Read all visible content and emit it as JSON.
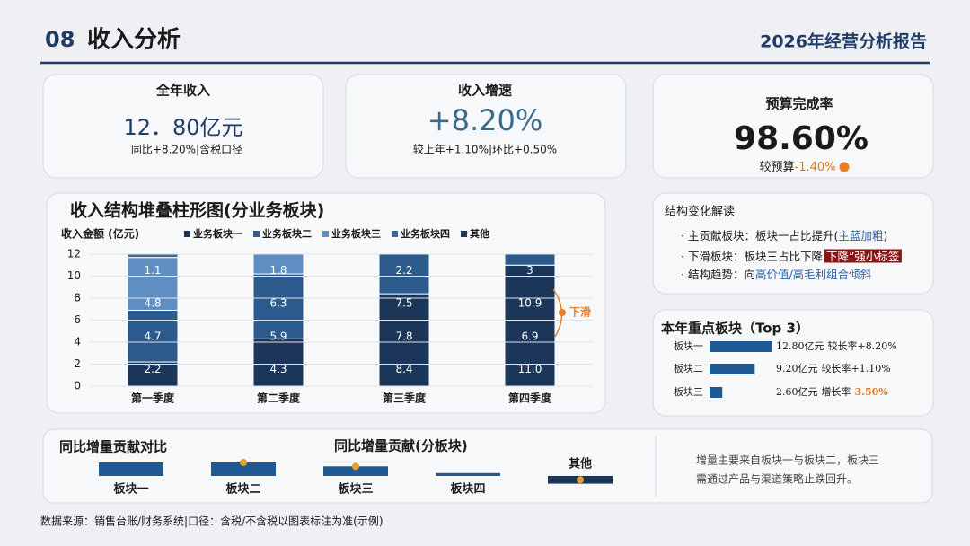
{
  "header": {
    "number": "08",
    "title": "收入分析",
    "report": "2026年经营分析报告"
  },
  "cards": [
    {
      "title": "全年收入",
      "value": "12．80亿元",
      "sub": "同比+8.20%|含税口径"
    },
    {
      "title": "收入增速",
      "value": "+8.20%",
      "sub": "较上年+1.10%|环比+0.50%"
    },
    {
      "title": "预算完成率",
      "value": "98.60%",
      "sub": "较预算",
      "delta": "-1.40%"
    }
  ],
  "chart_data": [
    {
      "type": "stacked_bar",
      "title": "收入结构堆叠柱形图(分业务板块)",
      "y_label": "收入金额 (亿元)",
      "categories": [
        "第一季度",
        "第二季度",
        "第三季度",
        "第四季度"
      ],
      "series": [
        {
          "name": "业务板块一",
          "color": "#1b3658",
          "values": [
            2.2,
            4.3,
            8.4,
            11.0
          ],
          "value_labels": [
            "2.2",
            "4.3",
            "8.4",
            "11.0"
          ]
        },
        {
          "name": "业务板块二",
          "color": "#2c5a8c",
          "values": [
            4.7,
            5.9,
            7.8,
            6.9
          ]
        },
        {
          "name": "业务板块三",
          "color": "#5f8fc2",
          "values": [
            4.8,
            6.3,
            7.5,
            10.9
          ]
        },
        {
          "name": "业务板块四",
          "color": "#3c6a9c",
          "values": [
            1.1,
            1.8,
            2.2,
            3.0
          ]
        },
        {
          "name": "其他",
          "color": "#1b3658",
          "values": [
            null,
            null,
            null,
            null
          ]
        }
      ],
      "ylim": [
        0,
        12
      ],
      "yticks": [
        0,
        2,
        4,
        6,
        8,
        10,
        12
      ],
      "grid": true,
      "annotation": "下滑"
    },
    {
      "type": "hbar",
      "title": "本年重点板块（Top 3）",
      "categories": [
        "板块一",
        "板块二",
        "板块三"
      ],
      "values": [
        12.8,
        9.2,
        2.6
      ],
      "value_labels": [
        "12.80亿元",
        "9.20亿元",
        "2.60亿元"
      ],
      "notes": [
        "较长率+8.20%",
        "较长率+1.10%",
        "增长率"
      ],
      "note_values": [
        null,
        null,
        "3.50%"
      ],
      "color": "#1f5a94"
    },
    {
      "type": "bar",
      "title": "同比增量贡献(分板块)",
      "categories": [
        "板块一",
        "板块二",
        "板块三",
        "板块四",
        "其他"
      ],
      "values": [
        1.4,
        1.4,
        1.0,
        0.3,
        -0.8
      ],
      "color": "#1f5a94"
    }
  ],
  "insight": {
    "title": "结构变化解读",
    "lines": [
      [
        {
          "text": "主贡献板块：板块一占比提升(",
          "style": "plain"
        },
        {
          "text": "主蓝加粗",
          "style": "blue"
        },
        {
          "text": ")",
          "style": "plain"
        }
      ],
      [
        {
          "text": "下滑板块：板块三占比下降 ",
          "style": "plain"
        },
        {
          "text": "下降”强小标签",
          "style": "tag"
        }
      ],
      [
        {
          "text": "结构趋势：向",
          "style": "plain"
        },
        {
          "text": "高价值/高毛利组合倾斜",
          "style": "blue"
        }
      ]
    ]
  },
  "bottom": {
    "title": "同比增量贡献对比",
    "note": [
      "增量主要来自板块一与板块二，板块三",
      "需通过产品与渠道策略止跌回升。"
    ]
  },
  "footer": "数据来源：销售台账/财务系统|口径：含税/不含税以图表标注为准(示例)"
}
